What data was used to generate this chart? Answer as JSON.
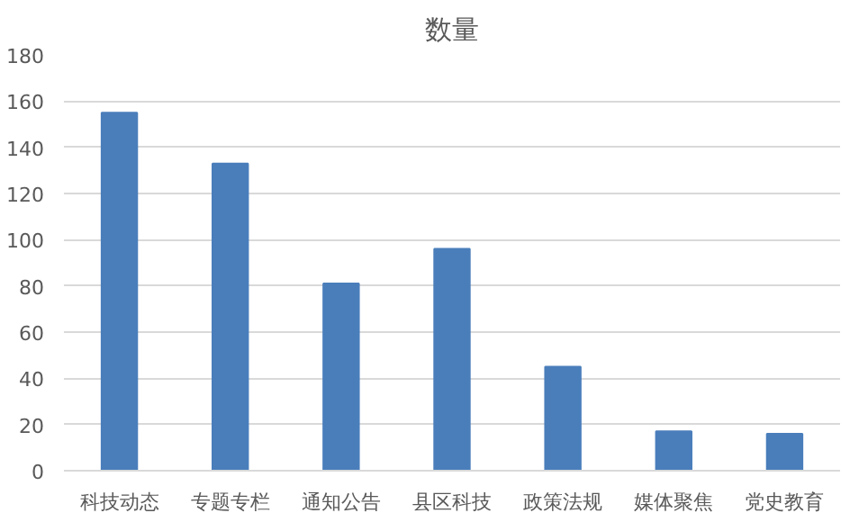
{
  "chart_data": {
    "type": "bar",
    "title": "数量",
    "categories": [
      "科技动态",
      "专题专栏",
      "通知公告",
      "县区科技",
      "政策法规",
      "媒体聚焦",
      "党史教育"
    ],
    "values": [
      155,
      133,
      81,
      96,
      45,
      17,
      16
    ],
    "color": "#4a7ebb",
    "ylim": [
      0,
      180
    ],
    "yticks": [
      0,
      20,
      40,
      60,
      80,
      100,
      120,
      140,
      160,
      180
    ],
    "grid": "y"
  }
}
